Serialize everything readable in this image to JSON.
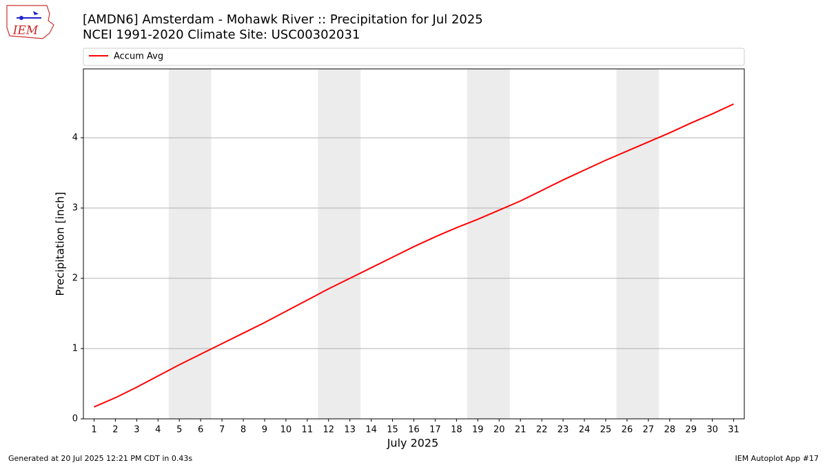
{
  "chart_data": {
    "type": "line",
    "title": "[AMDN6] Amsterdam - Mohawk River :: Precipitation for Jul 2025",
    "subtitle": "NCEI 1991-2020 Climate Site: USC00302031",
    "x_label": "July 2025",
    "y_label": "Precipitation [inch]",
    "x": [
      1,
      2,
      3,
      4,
      5,
      6,
      7,
      8,
      9,
      10,
      11,
      12,
      13,
      14,
      15,
      16,
      17,
      18,
      19,
      20,
      21,
      22,
      23,
      24,
      25,
      26,
      27,
      28,
      29,
      30,
      31
    ],
    "series": [
      {
        "name": "Accum Avg",
        "color": "#ff0000",
        "values": [
          0.17,
          0.3,
          0.45,
          0.61,
          0.77,
          0.92,
          1.07,
          1.22,
          1.37,
          1.53,
          1.69,
          1.85,
          2.0,
          2.15,
          2.3,
          2.45,
          2.59,
          2.72,
          2.84,
          2.97,
          3.1,
          3.25,
          3.4,
          3.54,
          3.68,
          3.81,
          3.94,
          4.07,
          4.21,
          4.34,
          4.48
        ]
      }
    ],
    "xlim": [
      0.5,
      31.5
    ],
    "xticks": [
      1,
      2,
      3,
      4,
      5,
      6,
      7,
      8,
      9,
      10,
      11,
      12,
      13,
      14,
      15,
      16,
      17,
      18,
      19,
      20,
      21,
      22,
      23,
      24,
      25,
      26,
      27,
      28,
      29,
      30,
      31
    ],
    "ylim": [
      0,
      4.98
    ],
    "yticks": [
      0,
      1,
      2,
      3,
      4
    ],
    "grid": true,
    "shaded_spans": [
      [
        4.5,
        6.5
      ],
      [
        11.5,
        13.5
      ],
      [
        18.5,
        20.5
      ],
      [
        25.5,
        27.5
      ]
    ],
    "shade_color": "#ececec",
    "legend_loc": "top"
  },
  "footer": {
    "left": "Generated at 20 Jul 2025 12:21 PM CDT in 0.43s",
    "right": "IEM Autoplot App #17"
  },
  "logo_text": "IEM"
}
